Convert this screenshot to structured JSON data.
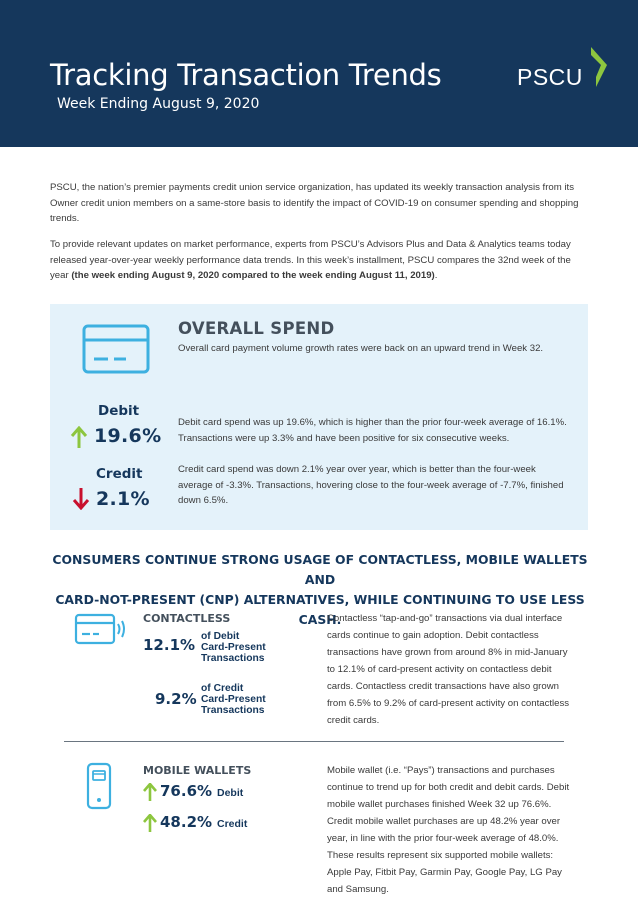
{
  "header": {
    "title": "Tracking Transaction Trends",
    "subtitle": "Week Ending August 9, 2020",
    "logo_text": "PSCU",
    "bg_color": "#15375c",
    "logo_accent": "#8dc63f"
  },
  "intro": {
    "p1": "PSCU, the nation’s premier payments credit union service organization, has updated its weekly transaction analysis from its Owner credit union members on a same-store basis to identify the impact of COVID-19 on consumer spending and shopping trends.",
    "p2_text": "To provide relevant updates on market performance, experts from PSCU’s Advisors Plus and Data & Analytics teams today released year-over-year weekly performance data trends. In this week’s installment, PSCU compares the 32nd week of the year ",
    "p2_bold": "(the week ending August 9, 2020 compared to the week ending August 11, 2019)",
    "p2_end": "."
  },
  "overall_spend": {
    "title": "OVERALL SPEND",
    "description": "Overall card payment volume growth rates were back on an upward trend in Week 32.",
    "icon": "credit-card-icon",
    "box_color": "#e4f2fa",
    "debit": {
      "label": "Debit",
      "value": "19.6%",
      "direction": "up",
      "arrow_color": "#8dc63f",
      "description": "Debit card spend was up 19.6%, which is higher than the prior four-week average of 16.1%. Transactions were up 3.3% and have been positive for six consecutive weeks."
    },
    "credit": {
      "label": "Credit",
      "value": "2.1%",
      "direction": "down",
      "arrow_color": "#c8102e",
      "description": "Credit card spend was down 2.1% year over year, which is better than the four-week average of -3.3%. Transactions, hovering close to the four-week average of -7.7%, finished down 6.5%."
    }
  },
  "section_heading": {
    "line1": "CONSUMERS CONTINUE STRONG USAGE OF CONTACTLESS, MOBILE WALLETS AND",
    "line2": "CARD-NOT-PRESENT (CNP) ALTERNATIVES, WHILE CONTINUING TO USE LESS CASH."
  },
  "contactless": {
    "title": "CONTACTLESS",
    "icon": "contactless-card-icon",
    "debit_pct": "12.1%",
    "debit_label_1": "of Debit",
    "debit_label_2": "Card-Present",
    "debit_label_3": "Transactions",
    "credit_pct": "9.2%",
    "credit_label_1": "of Credit",
    "credit_label_2": "Card-Present",
    "credit_label_3": "Transactions",
    "description": "Contactless “tap-and-go” transactions via dual interface cards continue to gain adoption. Debit contactless transactions have grown from around 8% in mid-January to 12.1% of card-present activity on contactless debit cards. Contactless credit transactions have also grown from 6.5% to 9.2% of card-present activity on contactless credit cards."
  },
  "mobile_wallets": {
    "title": "MOBILE WALLETS",
    "icon": "mobile-phone-icon",
    "debit_pct": "76.6%",
    "debit_label": "Debit",
    "credit_pct": "48.2%",
    "credit_label": "Credit",
    "description": "Mobile wallet (i.e. “Pays”) transactions and purchases continue to trend up for both credit and debit cards. Debit mobile wallet purchases finished Week 32 up 76.6%. Credit mobile wallet purchases are up 48.2% year over year, in line with the prior four-week average of 48.0%. These results represent six supported mobile wallets: Apple Pay, Fitbit Pay, Garmin Pay, Google Pay, LG Pay and Samsung."
  }
}
